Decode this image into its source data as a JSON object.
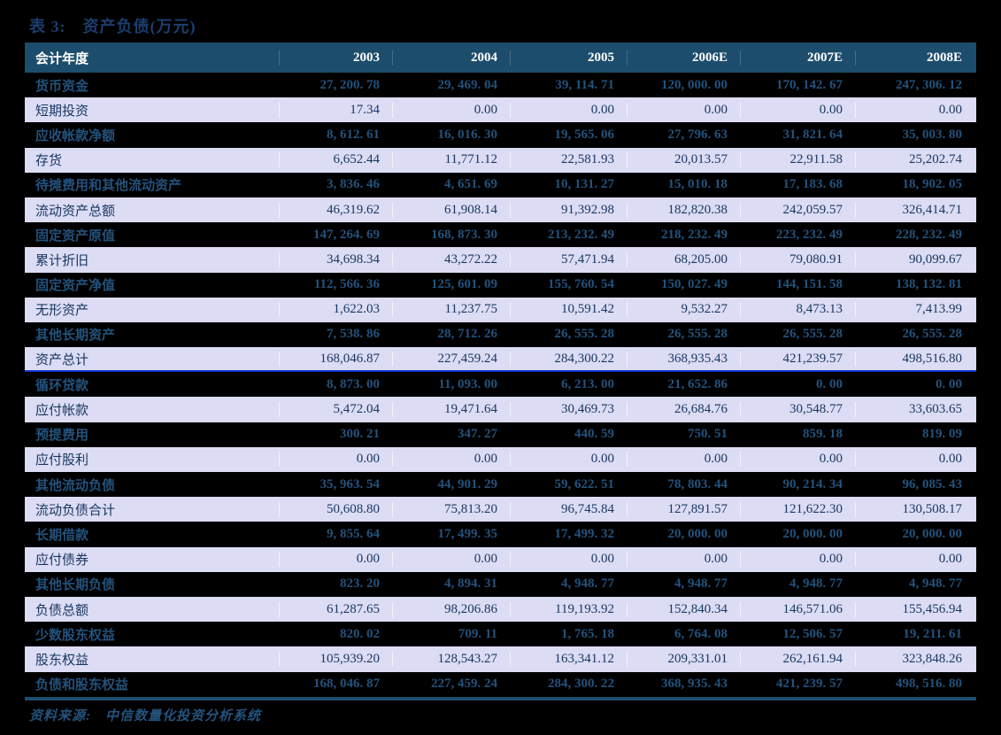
{
  "title": "表 3:　资产负债(万元)",
  "source_note": "资料来源:　中信数量化投资分析系统",
  "colors": {
    "page_bg": "#000000",
    "title_text": "#1A3E6E",
    "header_bg": "#1D4D6C",
    "row_dark_bg": "#000000",
    "row_light_bg": "#DCDCF5",
    "text_dark_rows": "#23527C",
    "text_light_rows": "#17365D",
    "section_divider": "#1133CC"
  },
  "table": {
    "header": [
      "会计年度",
      "2003",
      "2004",
      "2005",
      "2006E",
      "2007E",
      "2008E"
    ],
    "rows": [
      {
        "label": "货币资金",
        "shade": "dark",
        "divider": false,
        "values": [
          "27, 200. 78",
          "29, 469. 04",
          "39, 114. 71",
          "120, 000. 00",
          "170, 142. 67",
          "247, 306. 12"
        ]
      },
      {
        "label": "短期投资",
        "shade": "light",
        "divider": false,
        "values": [
          "17.34",
          "0.00",
          "0.00",
          "0.00",
          "0.00",
          "0.00"
        ]
      },
      {
        "label": "应收帐款净额",
        "shade": "dark",
        "divider": false,
        "values": [
          "8, 612. 61",
          "16, 016. 30",
          "19, 565. 06",
          "27, 796. 63",
          "31, 821. 64",
          "35, 003. 80"
        ]
      },
      {
        "label": "存货",
        "shade": "light",
        "divider": false,
        "values": [
          "6,652.44",
          "11,771.12",
          "22,581.93",
          "20,013.57",
          "22,911.58",
          "25,202.74"
        ]
      },
      {
        "label": "待摊费用和其他流动资产",
        "shade": "dark",
        "divider": false,
        "values": [
          "3, 836. 46",
          "4, 651. 69",
          "10, 131. 27",
          "15, 010. 18",
          "17, 183. 68",
          "18, 902. 05"
        ]
      },
      {
        "label": "流动资产总额",
        "shade": "light",
        "divider": false,
        "values": [
          "46,319.62",
          "61,908.14",
          "91,392.98",
          "182,820.38",
          "242,059.57",
          "326,414.71"
        ]
      },
      {
        "label": "固定资产原值",
        "shade": "dark",
        "divider": false,
        "values": [
          "147, 264. 69",
          "168, 873. 30",
          "213, 232. 49",
          "218, 232. 49",
          "223, 232. 49",
          "228, 232. 49"
        ]
      },
      {
        "label": "累计折旧",
        "shade": "light",
        "divider": false,
        "values": [
          "34,698.34",
          "43,272.22",
          "57,471.94",
          "68,205.00",
          "79,080.91",
          "90,099.67"
        ]
      },
      {
        "label": "固定资产净值",
        "shade": "dark",
        "divider": false,
        "values": [
          "112, 566. 36",
          "125, 601. 09",
          "155, 760. 54",
          "150, 027. 49",
          "144, 151. 58",
          "138, 132. 81"
        ]
      },
      {
        "label": "无形资产",
        "shade": "light",
        "divider": false,
        "values": [
          "1,622.03",
          "11,237.75",
          "10,591.42",
          "9,532.27",
          "8,473.13",
          "7,413.99"
        ]
      },
      {
        "label": "其他长期资产",
        "shade": "dark",
        "divider": false,
        "values": [
          "7, 538. 86",
          "28, 712. 26",
          "26, 555. 28",
          "26, 555. 28",
          "26, 555. 28",
          "26, 555. 28"
        ]
      },
      {
        "label": "资产总计",
        "shade": "light",
        "divider": true,
        "values": [
          "168,046.87",
          "227,459.24",
          "284,300.22",
          "368,935.43",
          "421,239.57",
          "498,516.80"
        ]
      },
      {
        "label": "循环贷款",
        "shade": "dark",
        "divider": false,
        "values": [
          "8, 873. 00",
          "11, 093. 00",
          "6, 213. 00",
          "21, 652. 86",
          "0. 00",
          "0. 00"
        ]
      },
      {
        "label": "应付帐款",
        "shade": "light",
        "divider": false,
        "values": [
          "5,472.04",
          "19,471.64",
          "30,469.73",
          "26,684.76",
          "30,548.77",
          "33,603.65"
        ]
      },
      {
        "label": "预提费用",
        "shade": "dark",
        "divider": false,
        "values": [
          "300. 21",
          "347. 27",
          "440. 59",
          "750. 51",
          "859. 18",
          "819. 09"
        ]
      },
      {
        "label": "应付股利",
        "shade": "light",
        "divider": false,
        "values": [
          "0.00",
          "0.00",
          "0.00",
          "0.00",
          "0.00",
          "0.00"
        ]
      },
      {
        "label": "其他流动负债",
        "shade": "dark",
        "divider": false,
        "values": [
          "35, 963. 54",
          "44, 901. 29",
          "59, 622. 51",
          "78, 803. 44",
          "90, 214. 34",
          "96, 085. 43"
        ]
      },
      {
        "label": "流动负债合计",
        "shade": "light",
        "divider": false,
        "values": [
          "50,608.80",
          "75,813.20",
          "96,745.84",
          "127,891.57",
          "121,622.30",
          "130,508.17"
        ]
      },
      {
        "label": "长期借款",
        "shade": "dark",
        "divider": false,
        "values": [
          "9, 855. 64",
          "17, 499. 35",
          "17, 499. 32",
          "20, 000. 00",
          "20, 000. 00",
          "20, 000. 00"
        ]
      },
      {
        "label": "应付债券",
        "shade": "light",
        "divider": false,
        "values": [
          "0.00",
          "0.00",
          "0.00",
          "0.00",
          "0.00",
          "0.00"
        ]
      },
      {
        "label": "其他长期负债",
        "shade": "dark",
        "divider": false,
        "values": [
          "823. 20",
          "4, 894. 31",
          "4, 948. 77",
          "4, 948. 77",
          "4, 948. 77",
          "4, 948. 77"
        ]
      },
      {
        "label": "负债总额",
        "shade": "light",
        "divider": false,
        "values": [
          "61,287.65",
          "98,206.86",
          "119,193.92",
          "152,840.34",
          "146,571.06",
          "155,456.94"
        ]
      },
      {
        "label": "少数股东权益",
        "shade": "dark",
        "divider": false,
        "values": [
          "820. 02",
          "709. 11",
          "1, 765. 18",
          "6, 764. 08",
          "12, 506. 57",
          "19, 211. 61"
        ]
      },
      {
        "label": "股东权益",
        "shade": "light",
        "divider": false,
        "values": [
          "105,939.20",
          "128,543.27",
          "163,341.12",
          "209,331.01",
          "262,161.94",
          "323,848.26"
        ]
      },
      {
        "label": "负债和股东权益",
        "shade": "dark",
        "divider": false,
        "values": [
          "168, 046. 87",
          "227, 459. 24",
          "284, 300. 22",
          "368, 935. 43",
          "421, 239. 57",
          "498, 516. 80"
        ]
      }
    ]
  }
}
